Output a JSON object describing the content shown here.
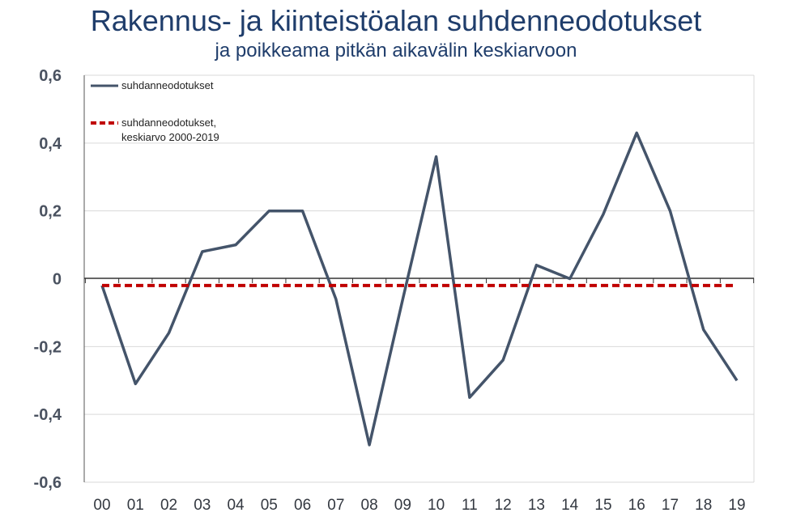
{
  "title": "Rakennus- ja kiinteistöalan  suhdenneodotukset",
  "subtitle": "ja poikkeama pitkän aikavälin keskiarvoon",
  "colors": {
    "title": "#1f3d6b",
    "series": "#44546a",
    "average": "#c00000",
    "grid": "#d9d9d9"
  },
  "chart_data": {
    "type": "line",
    "title": "Rakennus- ja kiinteistöalan  suhdenneodotukset",
    "subtitle": "ja poikkeama pitkän aikavälin keskiarvoon",
    "xlabel": "",
    "ylabel": "",
    "categories": [
      "00",
      "01",
      "02",
      "03",
      "04",
      "05",
      "06",
      "07",
      "08",
      "09",
      "10",
      "11",
      "12",
      "13",
      "14",
      "15",
      "16",
      "17",
      "18",
      "19"
    ],
    "ylim": [
      -0.6,
      0.6
    ],
    "yticks": [
      "0,6",
      "0,4",
      "0,2",
      "0",
      "-0,2",
      "-0,4",
      "-0,6"
    ],
    "ytick_values": [
      0.6,
      0.4,
      0.2,
      0,
      -0.2,
      -0.4,
      -0.6
    ],
    "grid": "horizontal",
    "legend_position": "top-left",
    "series": [
      {
        "name": "suhdanneodotukset",
        "style": "solid",
        "color": "#44546a",
        "values": [
          -0.02,
          -0.31,
          -0.16,
          0.08,
          0.1,
          0.2,
          0.2,
          -0.06,
          -0.49,
          -0.06,
          0.36,
          -0.35,
          -0.24,
          0.04,
          0.0,
          0.19,
          0.43,
          0.2,
          -0.15,
          -0.3
        ]
      },
      {
        "name": "suhdanneodotukset, keskiarvo 2000-2019",
        "legend_lines": [
          "suhdanneodotukset,",
          "keskiarvo 2000-2019"
        ],
        "style": "dashed",
        "color": "#c00000",
        "values": [
          -0.02,
          -0.02,
          -0.02,
          -0.02,
          -0.02,
          -0.02,
          -0.02,
          -0.02,
          -0.02,
          -0.02,
          -0.02,
          -0.02,
          -0.02,
          -0.02,
          -0.02,
          -0.02,
          -0.02,
          -0.02,
          -0.02,
          -0.02
        ]
      }
    ]
  }
}
